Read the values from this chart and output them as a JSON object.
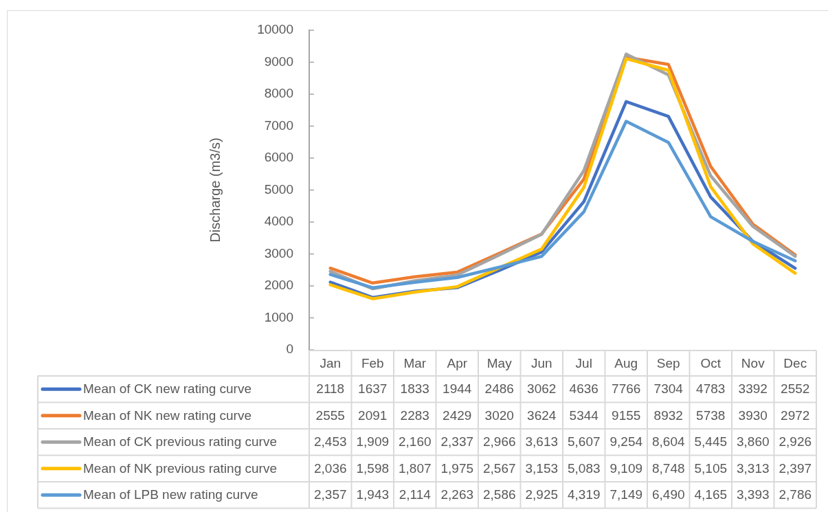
{
  "chart_data": {
    "type": "line",
    "ylabel": "Discharge (m3/s)",
    "categories": [
      "Jan",
      "Feb",
      "Mar",
      "Apr",
      "May",
      "Jun",
      "Jul",
      "Aug",
      "Sep",
      "Oct",
      "Nov",
      "Dec"
    ],
    "series": [
      {
        "name": "Mean of CK new rating curve",
        "color": "#4472c4",
        "values": [
          2118,
          1637,
          1833,
          1944,
          2486,
          3062,
          4636,
          7766,
          7304,
          4783,
          3392,
          2552
        ],
        "value_labels": [
          "2118",
          "1637",
          "1833",
          "1944",
          "2486",
          "3062",
          "4636",
          "7766",
          "7304",
          "4783",
          "3392",
          "2552"
        ]
      },
      {
        "name": "Mean of NK new rating curve",
        "color": "#ed7d31",
        "values": [
          2555,
          2091,
          2283,
          2429,
          3020,
          3624,
          5344,
          9155,
          8932,
          5738,
          3930,
          2972
        ],
        "value_labels": [
          "2555",
          "2091",
          "2283",
          "2429",
          "3020",
          "3624",
          "5344",
          "9155",
          "8932",
          "5738",
          "3930",
          "2972"
        ]
      },
      {
        "name": "Mean of CK previous rating curve",
        "color": "#a5a5a5",
        "values": [
          2453,
          1909,
          2160,
          2337,
          2966,
          3613,
          5607,
          9254,
          8604,
          5445,
          3860,
          2926
        ],
        "value_labels": [
          "2,453",
          "1,909",
          "2,160",
          "2,337",
          "2,966",
          "3,613",
          "5,607",
          "9,254",
          "8,604",
          "5,445",
          "3,860",
          "2,926"
        ]
      },
      {
        "name": "Mean of NK previous rating curve",
        "color": "#ffc000",
        "values": [
          2036,
          1598,
          1807,
          1975,
          2567,
          3153,
          5083,
          9109,
          8748,
          5105,
          3313,
          2397
        ],
        "value_labels": [
          "2,036",
          "1,598",
          "1,807",
          "1,975",
          "2,567",
          "3,153",
          "5,083",
          "9,109",
          "8,748",
          "5,105",
          "3,313",
          "2,397"
        ]
      },
      {
        "name": "Mean of LPB new rating curve",
        "color": "#5b9bd5",
        "values": [
          2357,
          1943,
          2114,
          2263,
          2586,
          2925,
          4319,
          7149,
          6490,
          4165,
          3393,
          2786
        ],
        "value_labels": [
          "2,357",
          "1,943",
          "2,114",
          "2,263",
          "2,586",
          "2,925",
          "4,319",
          "7,149",
          "6,490",
          "4,165",
          "3,393",
          "2,786"
        ]
      }
    ],
    "ylim": [
      0,
      10000
    ],
    "yticks": [
      0,
      1000,
      2000,
      3000,
      4000,
      5000,
      6000,
      7000,
      8000,
      9000,
      10000
    ],
    "legend": "bottom"
  }
}
